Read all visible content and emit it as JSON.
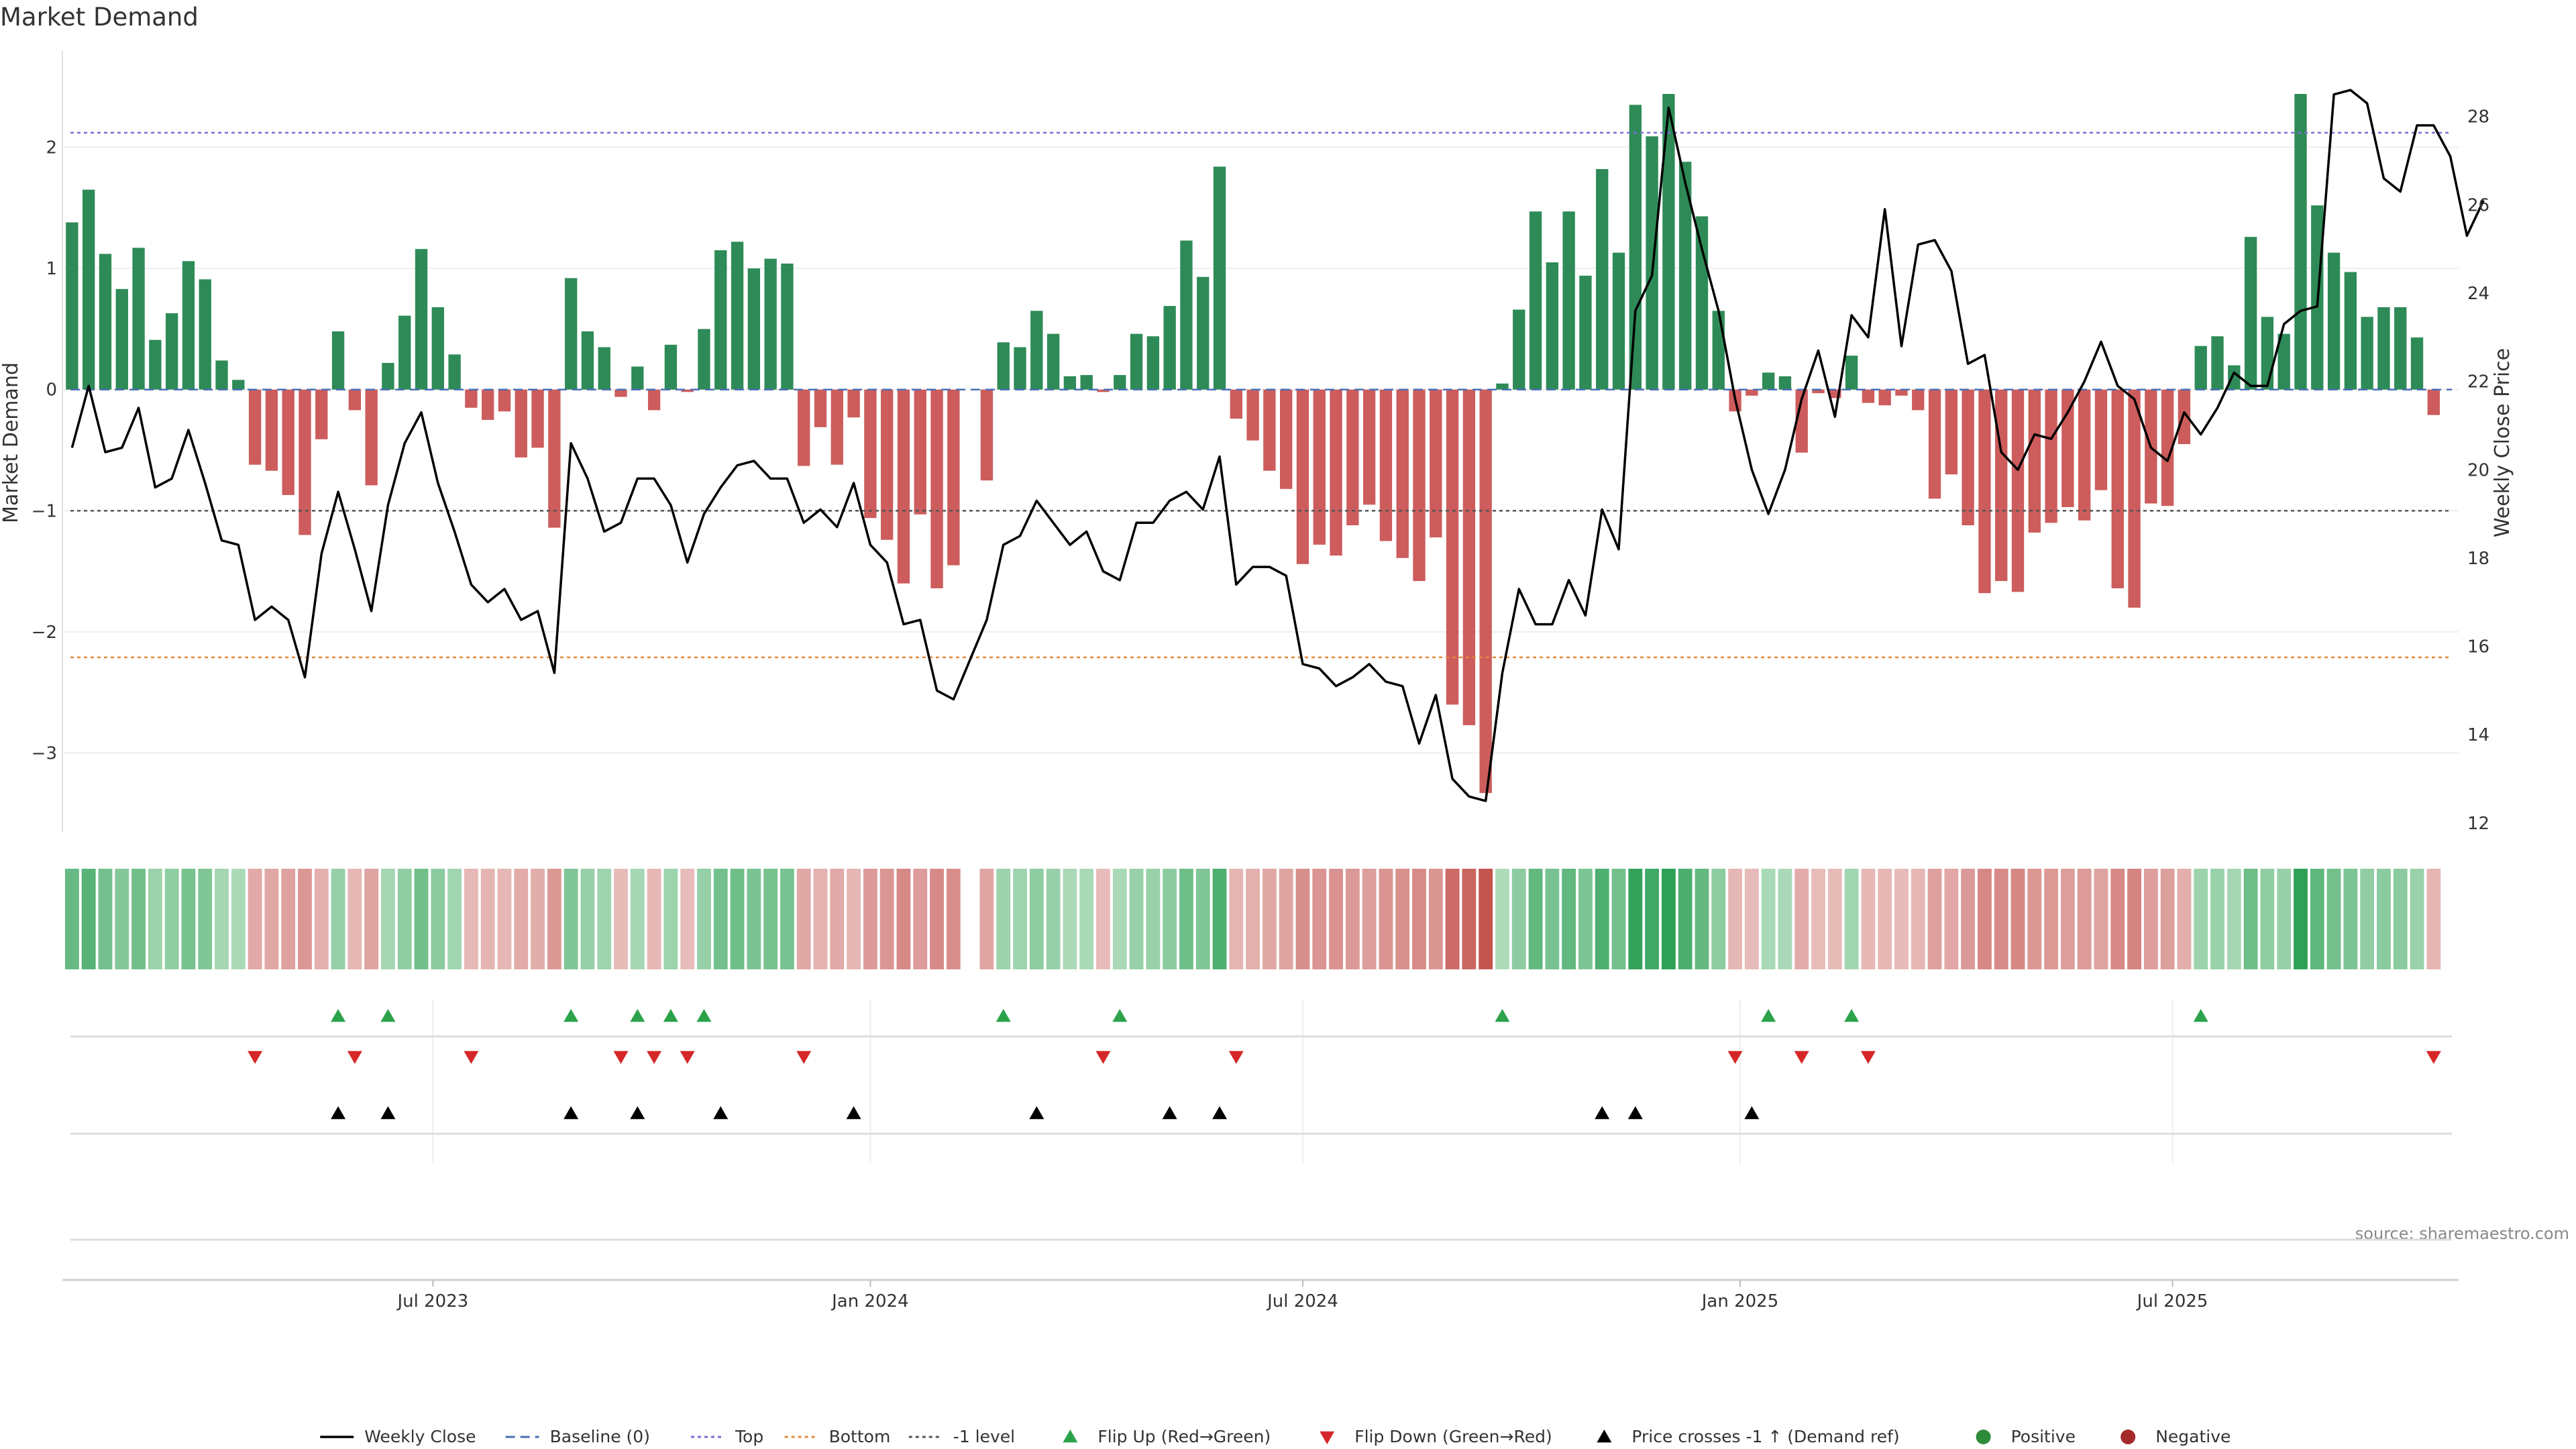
{
  "chart_data": {
    "type": "bar",
    "title": "Market Demand",
    "source": "source: sharemaestro.com",
    "ylabel": "Market Demand",
    "y2label": "Weekly Close Price",
    "ylim": [
      -3.65,
      2.8
    ],
    "y2lim": [
      11.8,
      29.5
    ],
    "yticks": [
      2,
      1,
      0,
      -1,
      -2,
      -3
    ],
    "ytick_labels": [
      "2",
      "1",
      "0",
      "−1",
      "−2",
      "−3"
    ],
    "y2ticks": [
      12,
      14,
      16,
      18,
      20,
      22,
      24,
      26,
      28
    ],
    "x_range": [
      -0.5,
      143.5
    ],
    "xticks": [
      {
        "pos": 21.7,
        "label": "Jul 2023"
      },
      {
        "pos": 48,
        "label": "Jan 2024"
      },
      {
        "pos": 74,
        "label": "Jul 2024"
      },
      {
        "pos": 100.3,
        "label": "Jan 2025"
      },
      {
        "pos": 126.3,
        "label": "Jul 2025"
      }
    ],
    "ref_lines": {
      "baseline": 0,
      "top": 2.12,
      "bottom": -2.21,
      "minus_one": -1
    },
    "demand": [
      1.38,
      1.65,
      1.12,
      0.83,
      1.17,
      0.41,
      0.63,
      1.06,
      0.91,
      0.24,
      0.08,
      -0.62,
      -0.67,
      -0.87,
      -1.2,
      -0.41,
      0.48,
      -0.17,
      -0.79,
      0.22,
      0.61,
      1.16,
      0.68,
      0.29,
      -0.15,
      -0.25,
      -0.18,
      -0.56,
      -0.48,
      -1.14,
      0.92,
      0.48,
      0.35,
      -0.06,
      0.19,
      -0.17,
      0.37,
      -0.02,
      0.5,
      1.15,
      1.22,
      1.0,
      1.08,
      1.04,
      -0.63,
      -0.31,
      -0.62,
      -0.23,
      -1.06,
      -1.24,
      -1.6,
      -1.03,
      -1.64,
      -1.45,
      0.0,
      -0.75,
      0.39,
      0.35,
      0.65,
      0.46,
      0.11,
      0.12,
      -0.02,
      0.12,
      0.46,
      0.44,
      0.69,
      1.23,
      0.93,
      1.84,
      -0.24,
      -0.42,
      -0.67,
      -0.82,
      -1.44,
      -1.28,
      -1.37,
      -1.12,
      -0.95,
      -1.25,
      -1.39,
      -1.58,
      -1.22,
      -2.6,
      -2.77,
      -3.33,
      0.05,
      0.66,
      1.47,
      1.05,
      1.47,
      0.94,
      1.82,
      1.13,
      2.35,
      2.09,
      2.44,
      1.88,
      1.43,
      0.65,
      -0.18,
      -0.05,
      0.14,
      0.11,
      -0.52,
      -0.03,
      -0.07,
      0.28,
      -0.11,
      -0.13,
      -0.05,
      -0.17,
      -0.9,
      -0.7,
      -1.12,
      -1.68,
      -1.58,
      -1.67,
      -1.18,
      -1.1,
      -0.97,
      -1.08,
      -0.83,
      -1.64,
      -1.8,
      -0.94,
      -0.96,
      -0.45,
      0.36,
      0.44,
      0.2,
      1.26,
      0.6,
      0.46,
      2.44,
      1.52,
      1.13,
      0.97,
      0.6,
      0.68,
      0.68,
      0.43,
      -0.21
    ],
    "price": [
      20.5,
      21.9,
      20.4,
      20.5,
      21.4,
      19.6,
      19.8,
      20.9,
      19.7,
      18.4,
      18.3,
      16.6,
      16.9,
      16.6,
      15.3,
      18.1,
      19.5,
      18.2,
      16.8,
      19.2,
      20.6,
      21.3,
      19.7,
      18.6,
      17.4,
      17.0,
      17.3,
      16.6,
      16.8,
      15.4,
      20.6,
      19.8,
      18.6,
      18.8,
      19.8,
      19.8,
      19.2,
      17.9,
      19.0,
      19.6,
      20.1,
      20.2,
      19.8,
      19.8,
      18.8,
      19.1,
      18.7,
      19.7,
      18.3,
      17.9,
      16.5,
      16.6,
      15.0,
      14.8,
      15.7,
      16.6,
      18.3,
      18.5,
      19.3,
      18.8,
      18.3,
      18.6,
      17.7,
      17.5,
      18.8,
      18.8,
      19.3,
      19.5,
      19.1,
      20.3,
      17.4,
      17.8,
      17.8,
      17.6,
      15.6,
      15.5,
      15.1,
      15.3,
      15.6,
      15.2,
      15.1,
      13.8,
      14.9,
      13.0,
      12.6,
      12.5,
      15.4,
      17.3,
      16.5,
      16.5,
      17.5,
      16.7,
      19.1,
      18.2,
      23.6,
      24.4,
      28.2,
      26.5,
      25.0,
      23.6,
      21.6,
      20.0,
      19.0,
      20.0,
      21.6,
      22.7,
      21.2,
      23.5,
      23.0,
      25.9,
      22.8,
      25.1,
      25.2,
      24.5,
      22.4,
      22.6,
      20.4,
      20.0,
      20.8,
      20.7,
      21.3,
      22.0,
      22.9,
      21.9,
      21.6,
      20.5,
      20.2,
      21.3,
      20.8,
      21.4,
      22.2,
      21.9,
      21.9,
      23.3,
      23.6,
      23.7,
      28.5,
      28.6,
      28.3,
      26.6,
      26.3,
      27.8,
      27.8,
      27.1,
      25.3,
      26.1
    ],
    "heat_gap_index": 54,
    "markers": {
      "flip_up": [
        16,
        19,
        30,
        34,
        36,
        38,
        56,
        63,
        86,
        102,
        107,
        128
      ],
      "flip_down": [
        11,
        17,
        24,
        33,
        35,
        37,
        44,
        62,
        70,
        100,
        104,
        108,
        142
      ],
      "price_cross": [
        16,
        19,
        30,
        34,
        39,
        47,
        58,
        66,
        69,
        92,
        94,
        101
      ]
    },
    "legend": [
      {
        "label": "Weekly Close",
        "kind": "line",
        "color": "#000000"
      },
      {
        "label": "Baseline (0)",
        "kind": "dash",
        "color": "#4a6fb5"
      },
      {
        "label": "Top",
        "kind": "dot",
        "color": "#7b6fd6"
      },
      {
        "label": "Bottom",
        "kind": "dot",
        "color": "#e08a3c"
      },
      {
        "label": "-1 level",
        "kind": "dot",
        "color": "#555555"
      },
      {
        "label": "Flip Up (Red→Green)",
        "kind": "tri-up",
        "color": "#2ca24a"
      },
      {
        "label": "Flip Down (Green→Red)",
        "kind": "tri-down",
        "color": "#d62728"
      },
      {
        "label": "Price crosses -1 ↑ (Demand ref)",
        "kind": "tri-up",
        "color": "#000000"
      },
      {
        "label": "Positive",
        "kind": "circle",
        "color": "#2e8b3a"
      },
      {
        "label": "Negative",
        "kind": "circle",
        "color": "#a52a2a"
      }
    ],
    "colors": {
      "positive": "#2e8b57",
      "negative": "#cd5c5c",
      "price": "#000000",
      "grid": "#eeeeee"
    }
  }
}
